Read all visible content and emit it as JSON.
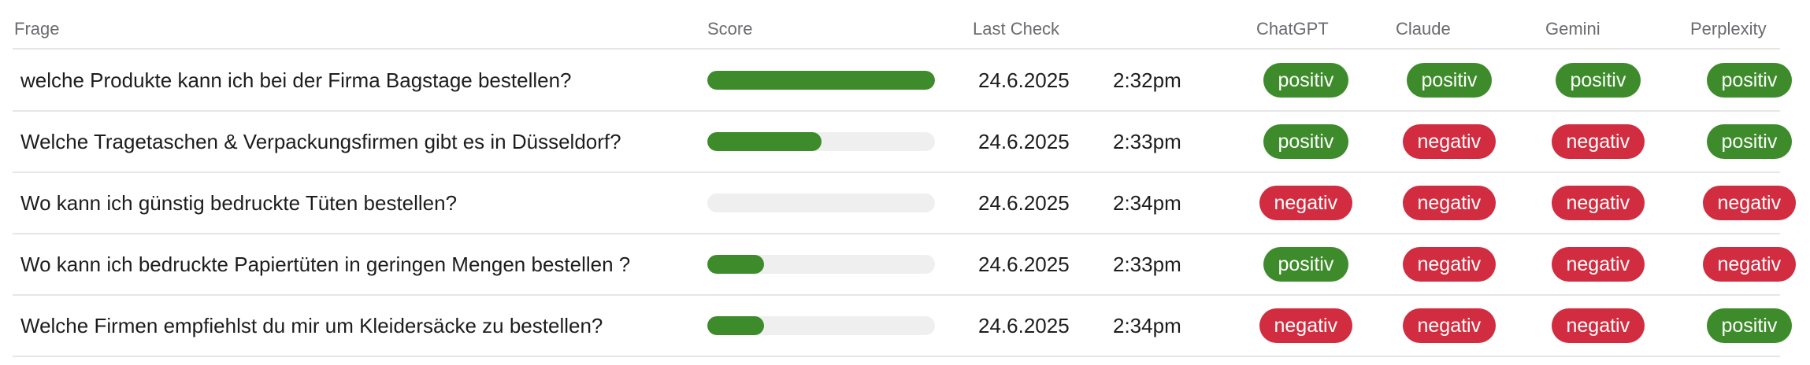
{
  "columns": {
    "frage": "Frage",
    "score": "Score",
    "last_check": "Last Check",
    "chatgpt": "ChatGPT",
    "claude": "Claude",
    "gemini": "Gemini",
    "perplexity": "Perplexity"
  },
  "colors": {
    "positive": "#3d8b2a",
    "negative": "#d12c3f",
    "bar_track": "#efefef"
  },
  "rows": [
    {
      "question": "welche Produkte kann ich bei der Firma Bagstage bestellen?",
      "score": 1.0,
      "date": "24.6.2025",
      "time": "2:32pm",
      "chatgpt": "positiv",
      "claude": "positiv",
      "gemini": "positiv",
      "perplexity": "positiv"
    },
    {
      "question": "Welche Tragetaschen & Verpackungsfirmen gibt es in Düsseldorf?",
      "score": 0.5,
      "date": "24.6.2025",
      "time": "2:33pm",
      "chatgpt": "positiv",
      "claude": "negativ",
      "gemini": "negativ",
      "perplexity": "positiv"
    },
    {
      "question": "Wo kann ich günstig bedruckte Tüten bestellen?",
      "score": 0.0,
      "date": "24.6.2025",
      "time": "2:34pm",
      "chatgpt": "negativ",
      "claude": "negativ",
      "gemini": "negativ",
      "perplexity": "negativ"
    },
    {
      "question": "Wo kann ich bedruckte Papiertüten in geringen Mengen bestellen ?",
      "score": 0.25,
      "date": "24.6.2025",
      "time": "2:33pm",
      "chatgpt": "positiv",
      "claude": "negativ",
      "gemini": "negativ",
      "perplexity": "negativ"
    },
    {
      "question": "Welche Firmen empfiehlst du mir um Kleidersäcke zu bestellen?",
      "score": 0.25,
      "date": "24.6.2025",
      "time": "2:34pm",
      "chatgpt": "negativ",
      "claude": "negativ",
      "gemini": "negativ",
      "perplexity": "positiv"
    }
  ]
}
